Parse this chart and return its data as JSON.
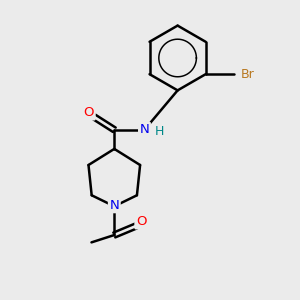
{
  "background_color": "#ebebeb",
  "bond_color": "#000000",
  "bond_width": 1.8,
  "atom_colors": {
    "N": "#0000ee",
    "O": "#ff0000",
    "Br": "#b87820",
    "H": "#008888"
  },
  "figsize": [
    3.0,
    3.0
  ],
  "dpi": 100,
  "xlim": [
    0.0,
    5.5
  ],
  "ylim": [
    -1.5,
    6.5
  ]
}
